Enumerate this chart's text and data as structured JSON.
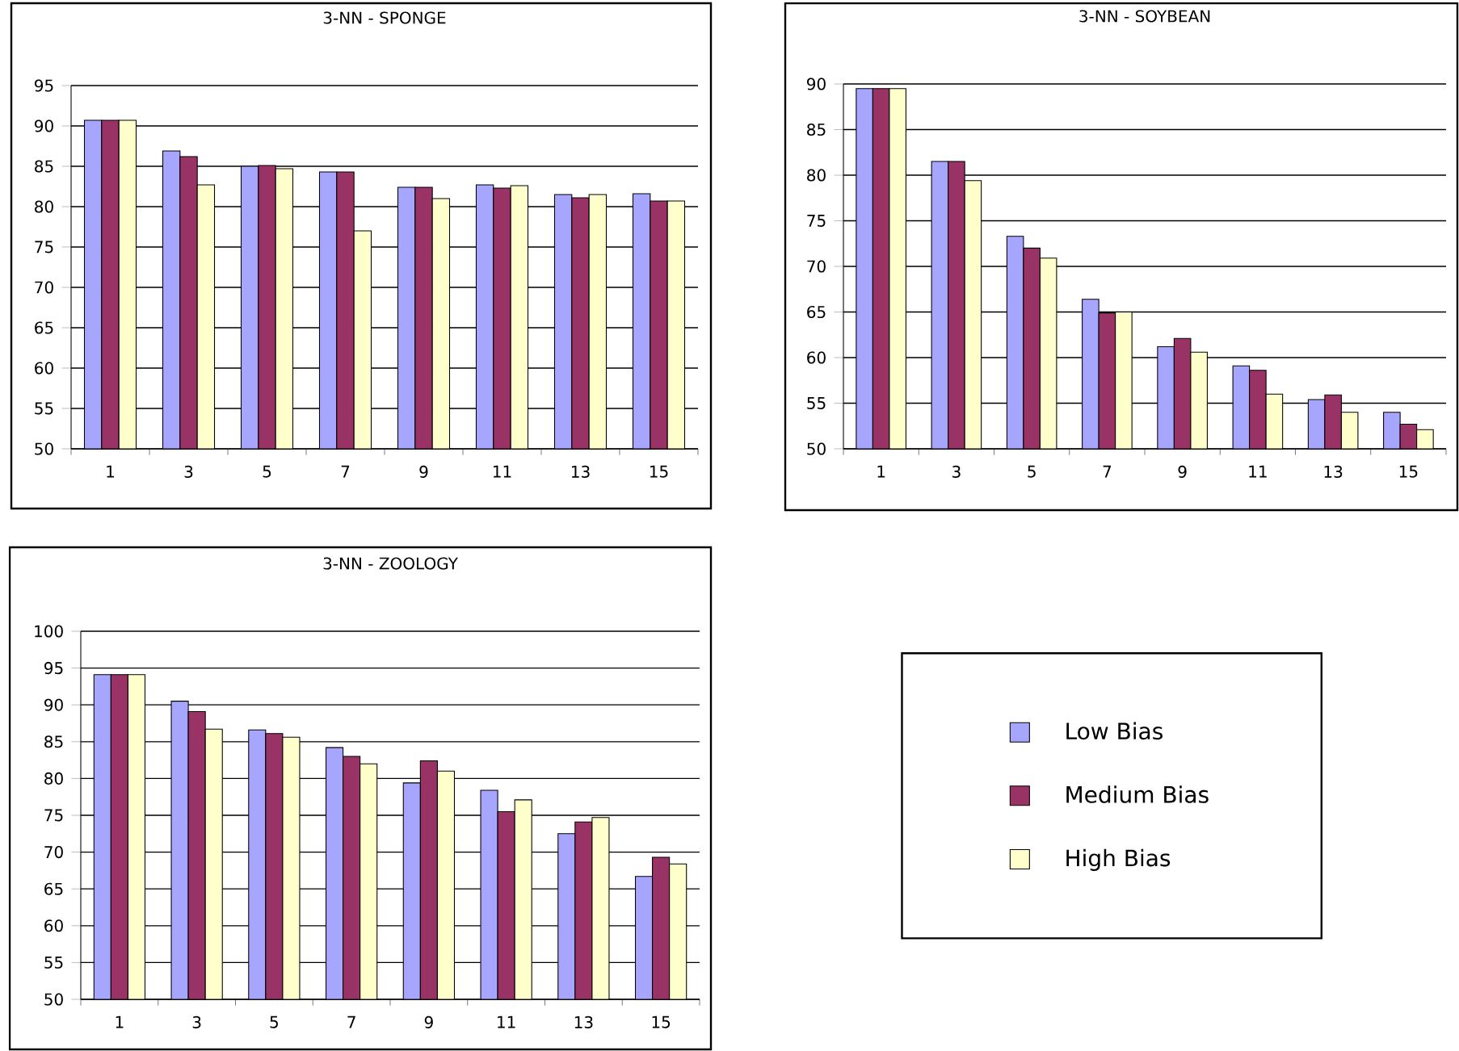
{
  "chart_data": [
    {
      "type": "bar",
      "title": "3-NN - SPONGE",
      "categories": [
        "1",
        "3",
        "5",
        "7",
        "9",
        "11",
        "13",
        "15"
      ],
      "ylim": [
        50,
        95
      ],
      "yticks": [
        50,
        55,
        60,
        65,
        70,
        75,
        80,
        85,
        90,
        95
      ],
      "grid": "y",
      "legend": false,
      "series": [
        {
          "color": "#a6a6ff",
          "values": [
            90.7,
            86.9,
            85.0,
            84.3,
            82.4,
            82.7,
            81.5,
            81.6
          ]
        },
        {
          "color": "#993366",
          "values": [
            90.7,
            86.2,
            85.1,
            84.3,
            82.4,
            82.3,
            81.1,
            80.7
          ]
        },
        {
          "color": "#ffffcc",
          "values": [
            90.7,
            82.7,
            84.7,
            77.0,
            81.0,
            82.6,
            81.5,
            80.7
          ]
        }
      ]
    },
    {
      "type": "bar",
      "title": "3-NN - SOYBEAN",
      "categories": [
        "1",
        "3",
        "5",
        "7",
        "9",
        "11",
        "13",
        "15"
      ],
      "ylim": [
        50,
        90
      ],
      "yticks": [
        50,
        55,
        60,
        65,
        70,
        75,
        80,
        85,
        90
      ],
      "grid": "y",
      "legend": false,
      "series": [
        {
          "color": "#a6a6ff",
          "values": [
            89.5,
            81.5,
            73.3,
            66.4,
            61.2,
            59.1,
            55.4,
            54.0
          ]
        },
        {
          "color": "#993366",
          "values": [
            89.5,
            81.5,
            72.0,
            64.9,
            62.1,
            58.6,
            55.9,
            52.7
          ]
        },
        {
          "color": "#ffffcc",
          "values": [
            89.5,
            79.4,
            70.9,
            65.0,
            60.6,
            56.0,
            54.0,
            52.1
          ]
        }
      ]
    },
    {
      "type": "bar",
      "title": "3-NN - ZOOLOGY",
      "categories": [
        "1",
        "3",
        "5",
        "7",
        "9",
        "11",
        "13",
        "15"
      ],
      "ylim": [
        50,
        100
      ],
      "yticks": [
        50,
        55,
        60,
        65,
        70,
        75,
        80,
        85,
        90,
        95,
        100
      ],
      "grid": "y",
      "legend": "right",
      "series": [
        {
          "name": "Low Bias",
          "color": "#a6a6ff",
          "values": [
            94.1,
            90.5,
            86.6,
            84.2,
            79.4,
            78.4,
            72.5,
            66.7
          ]
        },
        {
          "name": "Medium Bias",
          "color": "#993366",
          "values": [
            94.1,
            89.1,
            86.1,
            83.0,
            82.4,
            75.5,
            74.1,
            69.3
          ]
        },
        {
          "name": "High Bias",
          "color": "#ffffcc",
          "values": [
            94.1,
            86.7,
            85.6,
            82.0,
            81.0,
            77.1,
            74.7,
            68.4
          ]
        }
      ]
    }
  ]
}
